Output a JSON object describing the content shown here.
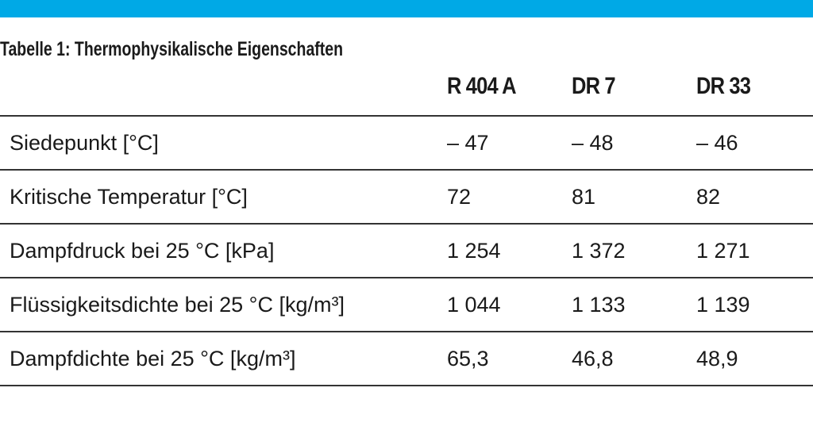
{
  "table": {
    "title": "Tabelle 1: Thermophysikalische Eigenschaften",
    "columns": [
      "R 404 A",
      "DR 7",
      "DR 33"
    ],
    "rows": [
      [
        "Siedepunkt [°C]",
        "– 47",
        "– 48",
        "– 46"
      ],
      [
        "Kritische Temperatur [°C]",
        "72",
        "81",
        "82"
      ],
      [
        "Dampfdruck bei 25 °C [kPa]",
        "1 254",
        "1 372",
        "1 271"
      ],
      [
        "Flüssigkeitsdichte bei 25 °C [kg/m³]",
        "1 044",
        "1 133",
        "1 139"
      ],
      [
        "Dampfdichte bei 25 °C [kg/m³]",
        "65,3",
        "46,8",
        "48,9"
      ]
    ]
  }
}
